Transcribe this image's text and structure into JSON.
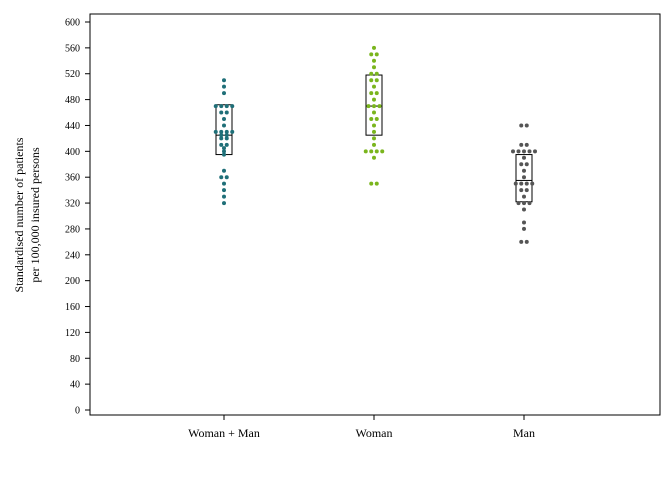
{
  "chart_data": {
    "type": "scatter",
    "subtype": "dot-plot with box (quartiles and median)",
    "ylabel_lines": [
      "Standardised number of patients",
      "per 100,000 insured persons"
    ],
    "ylim": [
      0,
      620
    ],
    "yticks": [
      0,
      40,
      80,
      120,
      160,
      200,
      240,
      280,
      320,
      360,
      400,
      440,
      480,
      520,
      560,
      600
    ],
    "grid": false,
    "legend": "none",
    "groups": [
      {
        "label": "Woman + Man",
        "color": "#1f6f78",
        "box": {
          "q1": 395,
          "median": 425,
          "q3": 472
        },
        "points": [
          320,
          330,
          340,
          350,
          360,
          360,
          370,
          395,
          400,
          405,
          410,
          410,
          420,
          420,
          425,
          425,
          430,
          430,
          430,
          430,
          440,
          450,
          460,
          460,
          470,
          470,
          470,
          470,
          490,
          500,
          510
        ]
      },
      {
        "label": "Woman",
        "color": "#7ab51d",
        "box": {
          "q1": 425,
          "median": 470,
          "q3": 518
        },
        "points": [
          350,
          350,
          390,
          400,
          400,
          400,
          400,
          410,
          420,
          430,
          440,
          450,
          450,
          460,
          470,
          470,
          470,
          480,
          490,
          490,
          500,
          510,
          510,
          520,
          520,
          530,
          540,
          550,
          550,
          560
        ]
      },
      {
        "label": "Man",
        "color": "#555555",
        "box": {
          "q1": 322,
          "median": 355,
          "q3": 395
        },
        "points": [
          260,
          260,
          280,
          290,
          310,
          320,
          320,
          320,
          330,
          340,
          340,
          350,
          350,
          350,
          350,
          360,
          370,
          380,
          380,
          390,
          400,
          400,
          400,
          400,
          400,
          410,
          410,
          440,
          440
        ]
      }
    ]
  }
}
